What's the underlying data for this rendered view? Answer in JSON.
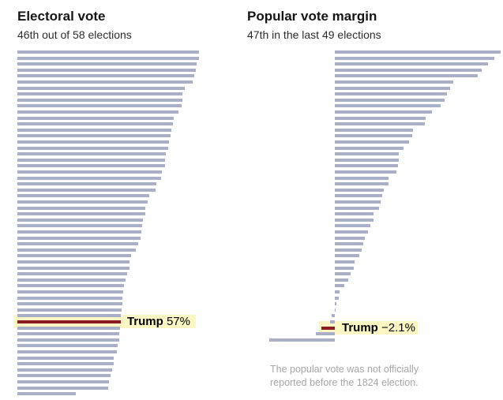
{
  "colors": {
    "bar": "#a9afc6",
    "highlight_bar": "#8d1b21",
    "highlight_band": "#fcf6c4",
    "title_text": "#151515",
    "note_text": "#a6a6a6",
    "background": "#ffffff"
  },
  "charts": [
    {
      "title": "Electoral vote",
      "subtitle": "46th out of 58 elections",
      "highlight": {
        "name": "Trump",
        "value": "57%"
      },
      "chart_data": {
        "type": "bar",
        "orientation": "horizontal",
        "title": "Electoral vote",
        "subtitle": "46th out of 58 elections",
        "unit": "winner's share of electoral vote, percent",
        "sorted": "descending",
        "xlim": [
          0,
          100
        ],
        "grid": false,
        "highlight_index": 45,
        "highlight_label": "Trump 57%",
        "values": [
          100,
          100,
          98.5,
          98.3,
          97.6,
          96.7,
          92,
          91,
          90.9,
          90.3,
          88.9,
          86.1,
          85.8,
          84.6,
          84.3,
          83.6,
          83.2,
          81.9,
          81.4,
          81.3,
          79.6,
          79.2,
          76.6,
          76.1,
          72.8,
          71.9,
          70.6,
          70.5,
          69.3,
          68.8,
          68.2,
          67.8,
          66.5,
          65.3,
          62.4,
          61.8,
          61.7,
          60.6,
          59.4,
          58.8,
          58.1,
          58,
          57.8,
          57.4,
          57.1,
          56.9,
          56.4,
          56.2,
          56,
          55.2,
          54.6,
          53.2,
          52.9,
          52.2,
          51.5,
          50.4,
          50.1,
          32.2
        ]
      }
    },
    {
      "title": "Popular vote margin",
      "subtitle": "47th in the last 49 elections",
      "highlight": {
        "name": "Trump",
        "value": "−2.1%"
      },
      "note": {
        "line1": "The popular vote was not officially",
        "line2": "reported before the 1824 election."
      },
      "chart_data": {
        "type": "bar",
        "orientation": "horizontal",
        "title": "Popular vote margin",
        "subtitle": "47th in the last 49 elections",
        "unit": "winner's popular vote margin, percentage points",
        "sorted": "descending",
        "xlim": [
          -12,
          27
        ],
        "grid": false,
        "highlight_index": 46,
        "highlight_label": "Trump −2.1%",
        "values": [
          26.2,
          25.2,
          24.3,
          23.2,
          22.6,
          18.8,
          18.2,
          17.8,
          17.4,
          16.8,
          15.4,
          14.4,
          14.2,
          12.4,
          12.2,
          11.8,
          10.9,
          10.1,
          10.1,
          10,
          9.7,
          8.5,
          8.5,
          7.7,
          7.5,
          7.3,
          7,
          6.1,
          6.1,
          5.6,
          5.3,
          4.8,
          4.5,
          4.3,
          3.9,
          3.1,
          3,
          2.5,
          2.1,
          1.5,
          0.7,
          0.6,
          0.2,
          0.1,
          -0.5,
          -0.8,
          -2.1,
          -3,
          -10.4
        ]
      }
    }
  ]
}
